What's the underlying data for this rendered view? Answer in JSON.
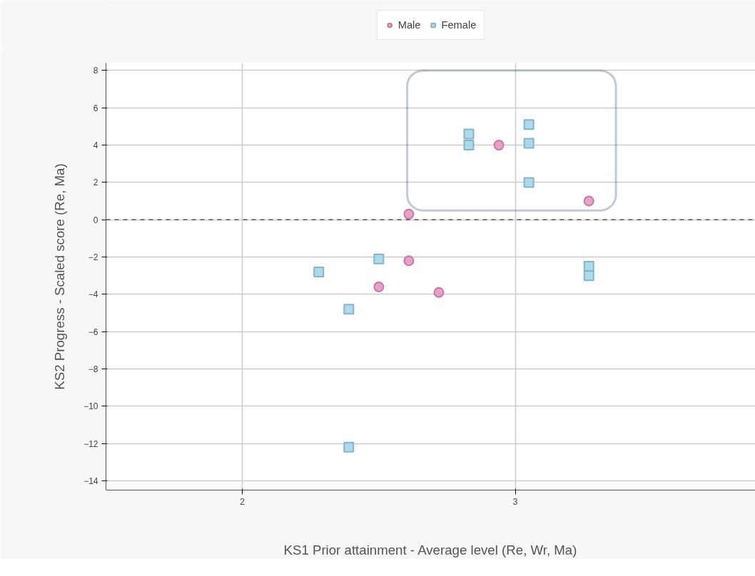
{
  "chart_data": {
    "type": "scatter",
    "xlabel": "KS1 Prior attainment - Average level (Re, Wr, Ma)",
    "ylabel": "KS2 Progress - Scaled score (Re, Ma)",
    "xlim": [
      1.5,
      3.88
    ],
    "xticks": [
      2,
      3
    ],
    "ylim": [
      -14.5,
      8.4
    ],
    "yticks": [
      -14,
      -12,
      -10,
      -8,
      -6,
      -4,
      -2,
      0,
      2,
      4,
      6,
      8
    ],
    "grid": true,
    "legend": "top",
    "series": [
      {
        "name": "Male",
        "color": "#e88fc3",
        "marker": "circle",
        "x": [
          2.61,
          2.61,
          2.5,
          2.72,
          2.94,
          3.27
        ],
        "values": [
          0.3,
          -2.2,
          -3.6,
          -3.9,
          4.0,
          1.0
        ]
      },
      {
        "name": "Female",
        "color": "#9dd5ea",
        "marker": "square",
        "x": [
          2.28,
          2.39,
          2.39,
          2.5,
          2.83,
          2.83,
          3.05,
          3.05,
          3.05,
          3.27,
          3.27
        ],
        "values": [
          -2.8,
          -4.8,
          -12.2,
          -2.1,
          4.6,
          4.0,
          5.1,
          4.1,
          2.0,
          -2.5,
          -3.0
        ]
      }
    ],
    "ref_lines": [
      {
        "axis": "y",
        "value": 0,
        "label": null,
        "color": "#555555",
        "line_style": "dashed"
      }
    ]
  }
}
